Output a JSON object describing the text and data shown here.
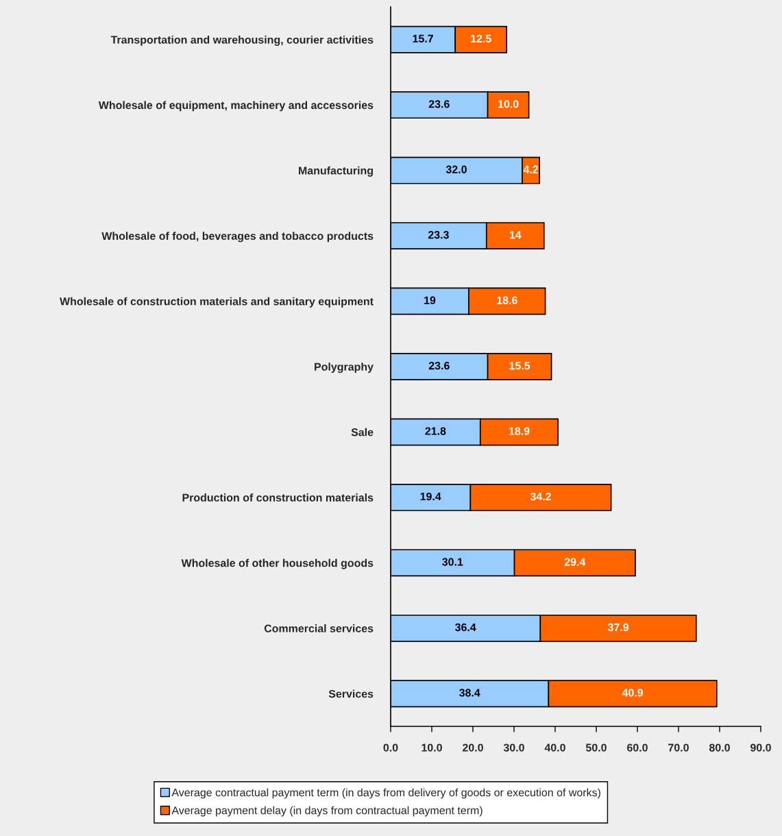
{
  "chart_data": {
    "type": "bar",
    "orientation": "horizontal",
    "stacked": true,
    "legend": "bottom",
    "categories": [
      "Transportation and warehousing, courier activities",
      "Wholesale of equipment, machinery and accessories",
      "Manufacturing",
      "Wholesale of food, beverages and tobacco products",
      "Wholesale of construction materials and sanitary equipment",
      "Polygraphy",
      "Sale",
      "Production of construction materials",
      "Wholesale of other household goods",
      "Commercial services",
      "Services"
    ],
    "series": [
      {
        "name": "Average contractual payment term (in days from delivery of goods or execution of works)",
        "color": "#99ccff",
        "values": [
          15.7,
          23.6,
          32.0,
          23.3,
          19,
          23.6,
          21.8,
          19.4,
          30.1,
          36.4,
          38.4
        ],
        "value_labels": [
          "15.7",
          "23.6",
          "32.0",
          "23.3",
          "19",
          "23.6",
          "21.8",
          "19.4",
          "30.1",
          "36.4",
          "38.4"
        ]
      },
      {
        "name": "Average payment delay (in days from contractual payment term)",
        "color": "#ff6600",
        "values": [
          12.5,
          10.0,
          4.2,
          14,
          18.6,
          15.5,
          18.9,
          34.2,
          29.4,
          37.9,
          40.9
        ],
        "value_labels": [
          "12.5",
          "10.0",
          "4.2",
          "14",
          "18.6",
          "15.5",
          "18.9",
          "34.2",
          "29.4",
          "37.9",
          "40.9"
        ]
      }
    ],
    "xlim": [
      0,
      90
    ],
    "xticks": [
      {
        "value": 0,
        "label": "0.0"
      },
      {
        "value": 10,
        "label": "10.0"
      },
      {
        "value": 20,
        "label": "20.0"
      },
      {
        "value": 30,
        "label": "30.0"
      },
      {
        "value": 40,
        "label": "40.0"
      },
      {
        "value": 50,
        "label": "50.0"
      },
      {
        "value": 60,
        "label": "60.0"
      },
      {
        "value": 70,
        "label": "70.0"
      },
      {
        "value": 80,
        "label": "80.0"
      },
      {
        "value": 90,
        "label": "90.0"
      }
    ]
  }
}
